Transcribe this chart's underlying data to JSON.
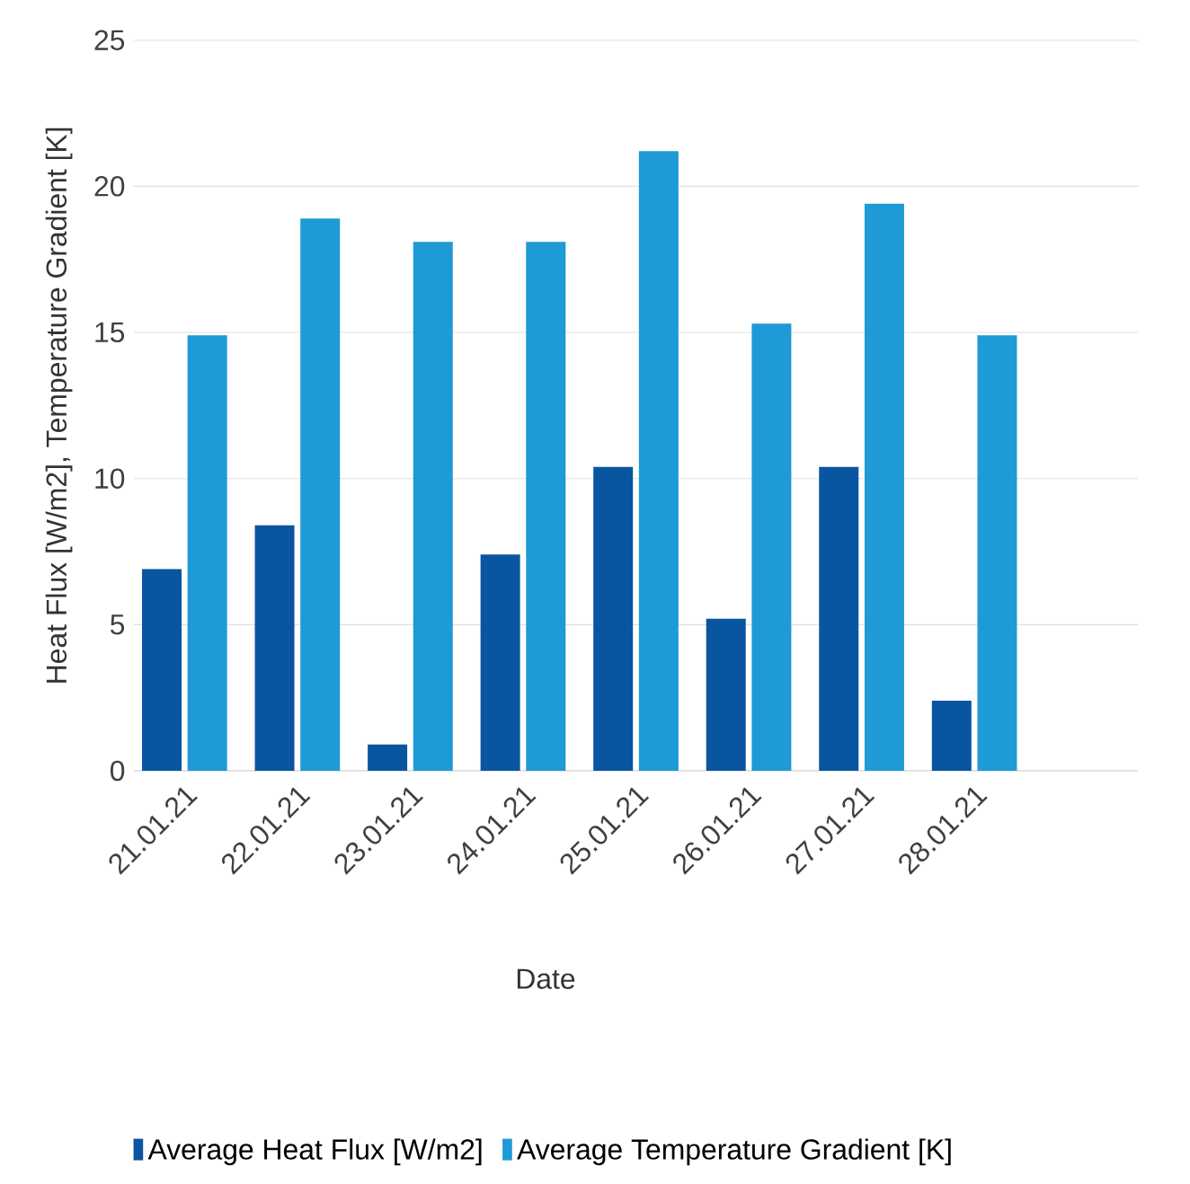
{
  "chart_data": {
    "type": "bar",
    "xlabel": "Date",
    "ylabel": "Heat Flux [W/m2], Temperature Gradient [K]",
    "categories": [
      "21.01.21",
      "22.01.21",
      "23.01.21",
      "24.01.21",
      "25.01.21",
      "26.01.21",
      "27.01.21",
      "28.01.21"
    ],
    "series": [
      {
        "name": "Average Heat Flux [W/m2]",
        "color": "#0a55a0",
        "values": [
          6.9,
          8.4,
          0.9,
          7.4,
          10.4,
          5.2,
          10.4,
          2.4
        ]
      },
      {
        "name": "Average Temperature Gradient [K]",
        "color": "#1e9ad6",
        "values": [
          14.9,
          18.9,
          18.1,
          18.1,
          21.2,
          15.3,
          19.4,
          14.9
        ]
      }
    ],
    "ylim": [
      0,
      25
    ],
    "yticks": [
      0,
      5,
      10,
      15,
      20,
      25
    ],
    "grid": "y",
    "legend": "bottom"
  }
}
